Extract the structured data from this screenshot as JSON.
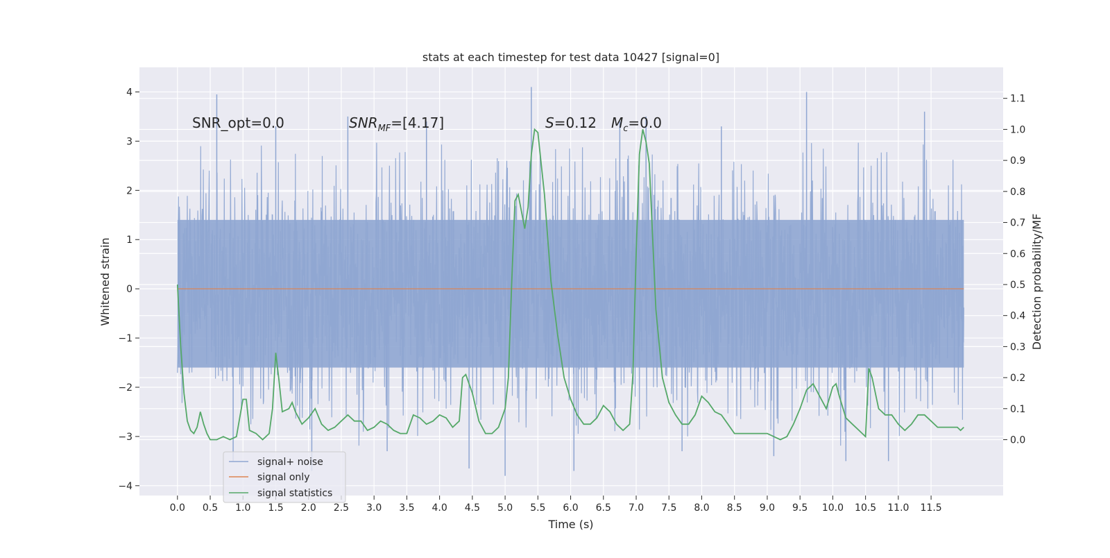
{
  "chart_data": {
    "type": "line",
    "title": "stats at each timestep for test data 10427 [signal=0]",
    "xlabel": "Time (s)",
    "ylabel_left": "Whitened strain",
    "ylabel_right": "Detection probability/MF",
    "xlim": [
      -0.58,
      12.6
    ],
    "ylim_left": [
      -4.2,
      4.5
    ],
    "ylim_right": [
      -0.18,
      1.2
    ],
    "x_ticks": [
      "0.0",
      "0.5",
      "1.0",
      "1.5",
      "2.0",
      "2.5",
      "3.0",
      "3.5",
      "4.0",
      "4.5",
      "5.0",
      "5.5",
      "6.0",
      "6.5",
      "7.0",
      "7.5",
      "8.0",
      "8.5",
      "9.0",
      "9.5",
      "10.0",
      "10.5",
      "11.0",
      "11.5"
    ],
    "y_left_ticks": [
      "−4",
      "−3",
      "−2",
      "−1",
      "0",
      "1",
      "2",
      "3",
      "4"
    ],
    "y_right_ticks": [
      "0.0",
      "0.1",
      "0.2",
      "0.3",
      "0.4",
      "0.5",
      "0.6",
      "0.7",
      "0.8",
      "0.9",
      "1.0",
      "1.1"
    ],
    "grid": true,
    "legend_position": "lower-left",
    "annotations": {
      "snr_opt": "SNR_opt=0.0",
      "snr_mf_italic": "SNR",
      "snr_mf_sub": "MF",
      "snr_mf_rest": "=[4.17]",
      "s_italic": "S",
      "s_rest": "=0.12",
      "mc_italic": "M",
      "mc_sub": "c",
      "mc_rest": "=0.0"
    },
    "series": [
      {
        "name": "signal+ noise",
        "color": "#8fa6d2",
        "axis": "left",
        "x_range": [
          0.0,
          12.0
        ],
        "typical_envelope": [
          -2.3,
          2.5
        ],
        "peaks_x": [
          0.6,
          0.85,
          1.5,
          2.05,
          2.6,
          3.2,
          3.8,
          4.45,
          5.0,
          5.4,
          6.05,
          6.75,
          7.15,
          7.7,
          8.3,
          9.1,
          9.6,
          10.2,
          10.85,
          11.4
        ],
        "peaks_y": [
          3.95,
          -3.5,
          3.3,
          -3.7,
          3.5,
          -3.3,
          3.4,
          -3.65,
          -3.8,
          4.1,
          -3.7,
          3.4,
          3.5,
          -3.3,
          3.3,
          -3.4,
          4.0,
          -3.5,
          -3.5,
          3.6
        ]
      },
      {
        "name": "signal only",
        "color": "#dd8452",
        "axis": "left",
        "x": [
          0.0,
          12.0
        ],
        "y": [
          0.0,
          0.0
        ]
      },
      {
        "name": "signal statistics",
        "color": "#55a868",
        "axis": "right",
        "x": [
          0.0,
          0.05,
          0.1,
          0.15,
          0.2,
          0.25,
          0.3,
          0.35,
          0.4,
          0.45,
          0.5,
          0.6,
          0.7,
          0.8,
          0.9,
          0.95,
          1.0,
          1.05,
          1.1,
          1.2,
          1.3,
          1.4,
          1.45,
          1.5,
          1.55,
          1.6,
          1.7,
          1.75,
          1.8,
          1.9,
          2.0,
          2.1,
          2.2,
          2.3,
          2.4,
          2.5,
          2.6,
          2.7,
          2.8,
          2.9,
          3.0,
          3.1,
          3.2,
          3.3,
          3.4,
          3.5,
          3.6,
          3.7,
          3.8,
          3.9,
          4.0,
          4.1,
          4.2,
          4.3,
          4.35,
          4.4,
          4.5,
          4.6,
          4.7,
          4.8,
          4.9,
          5.0,
          5.05,
          5.1,
          5.15,
          5.2,
          5.3,
          5.35,
          5.4,
          5.45,
          5.5,
          5.6,
          5.7,
          5.8,
          5.9,
          6.0,
          6.1,
          6.2,
          6.3,
          6.4,
          6.5,
          6.6,
          6.7,
          6.8,
          6.9,
          6.95,
          7.0,
          7.05,
          7.1,
          7.15,
          7.2,
          7.3,
          7.4,
          7.5,
          7.6,
          7.7,
          7.8,
          7.9,
          8.0,
          8.1,
          8.2,
          8.3,
          8.4,
          8.5,
          8.6,
          8.7,
          8.8,
          8.9,
          9.0,
          9.1,
          9.2,
          9.3,
          9.4,
          9.5,
          9.6,
          9.7,
          9.8,
          9.9,
          10.0,
          10.05,
          10.1,
          10.2,
          10.3,
          10.4,
          10.5,
          10.55,
          10.6,
          10.7,
          10.8,
          10.9,
          11.0,
          11.1,
          11.2,
          11.3,
          11.4,
          11.5,
          11.6,
          11.7,
          11.8,
          11.9,
          11.95,
          12.0
        ],
        "y": [
          0.5,
          0.3,
          0.15,
          0.06,
          0.03,
          0.02,
          0.04,
          0.09,
          0.05,
          0.02,
          0.0,
          0.0,
          0.01,
          0.0,
          0.01,
          0.07,
          0.13,
          0.13,
          0.03,
          0.02,
          0.0,
          0.02,
          0.1,
          0.28,
          0.19,
          0.09,
          0.1,
          0.12,
          0.09,
          0.05,
          0.07,
          0.1,
          0.05,
          0.03,
          0.04,
          0.06,
          0.08,
          0.06,
          0.06,
          0.03,
          0.04,
          0.06,
          0.05,
          0.03,
          0.02,
          0.02,
          0.08,
          0.07,
          0.05,
          0.06,
          0.08,
          0.07,
          0.04,
          0.06,
          0.2,
          0.21,
          0.15,
          0.06,
          0.02,
          0.02,
          0.04,
          0.1,
          0.2,
          0.5,
          0.77,
          0.79,
          0.68,
          0.75,
          0.92,
          1.0,
          0.99,
          0.79,
          0.51,
          0.34,
          0.2,
          0.13,
          0.08,
          0.05,
          0.05,
          0.07,
          0.11,
          0.09,
          0.05,
          0.03,
          0.05,
          0.21,
          0.6,
          0.92,
          1.0,
          0.96,
          0.89,
          0.42,
          0.2,
          0.12,
          0.08,
          0.05,
          0.05,
          0.08,
          0.14,
          0.12,
          0.09,
          0.08,
          0.05,
          0.02,
          0.02,
          0.02,
          0.02,
          0.02,
          0.02,
          0.01,
          0.0,
          0.01,
          0.05,
          0.1,
          0.16,
          0.18,
          0.14,
          0.1,
          0.17,
          0.18,
          0.14,
          0.07,
          0.05,
          0.03,
          0.01,
          0.23,
          0.2,
          0.1,
          0.08,
          0.08,
          0.05,
          0.03,
          0.05,
          0.08,
          0.08,
          0.06,
          0.04,
          0.04,
          0.04,
          0.04,
          0.03,
          0.04
        ]
      }
    ]
  }
}
